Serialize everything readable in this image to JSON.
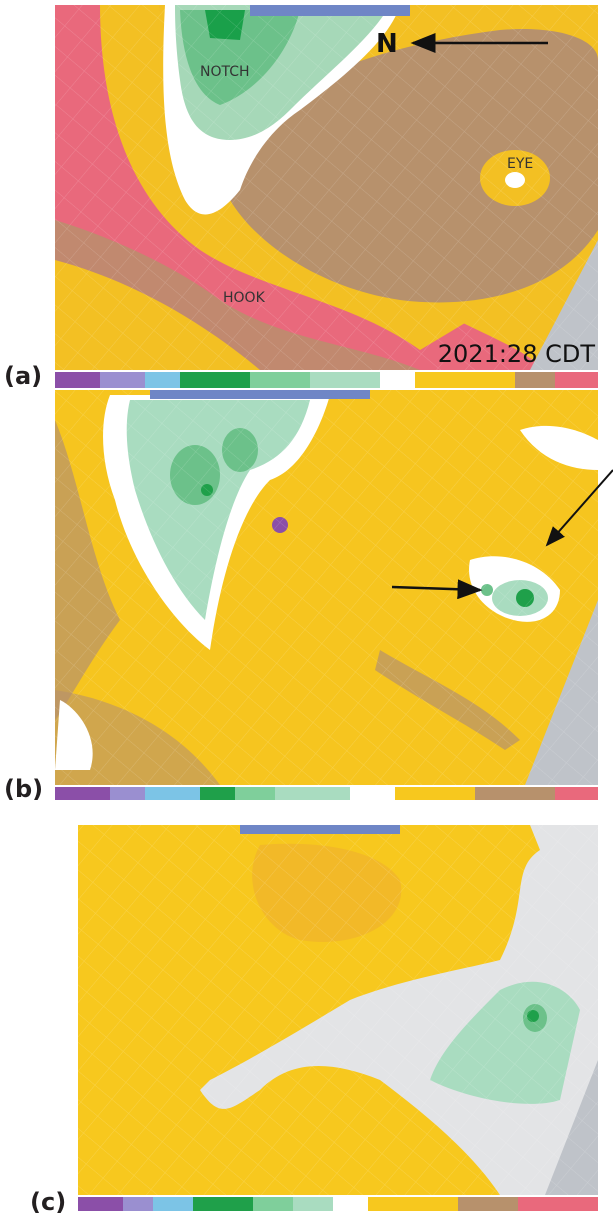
{
  "panels": [
    {
      "label": "(a)",
      "north": "N",
      "annotations": [
        "NOTCH",
        "EYE",
        "HOOK"
      ],
      "timestamp": "2021:28 CDT"
    },
    {
      "label": "(b)"
    },
    {
      "label": "(c)"
    }
  ]
}
